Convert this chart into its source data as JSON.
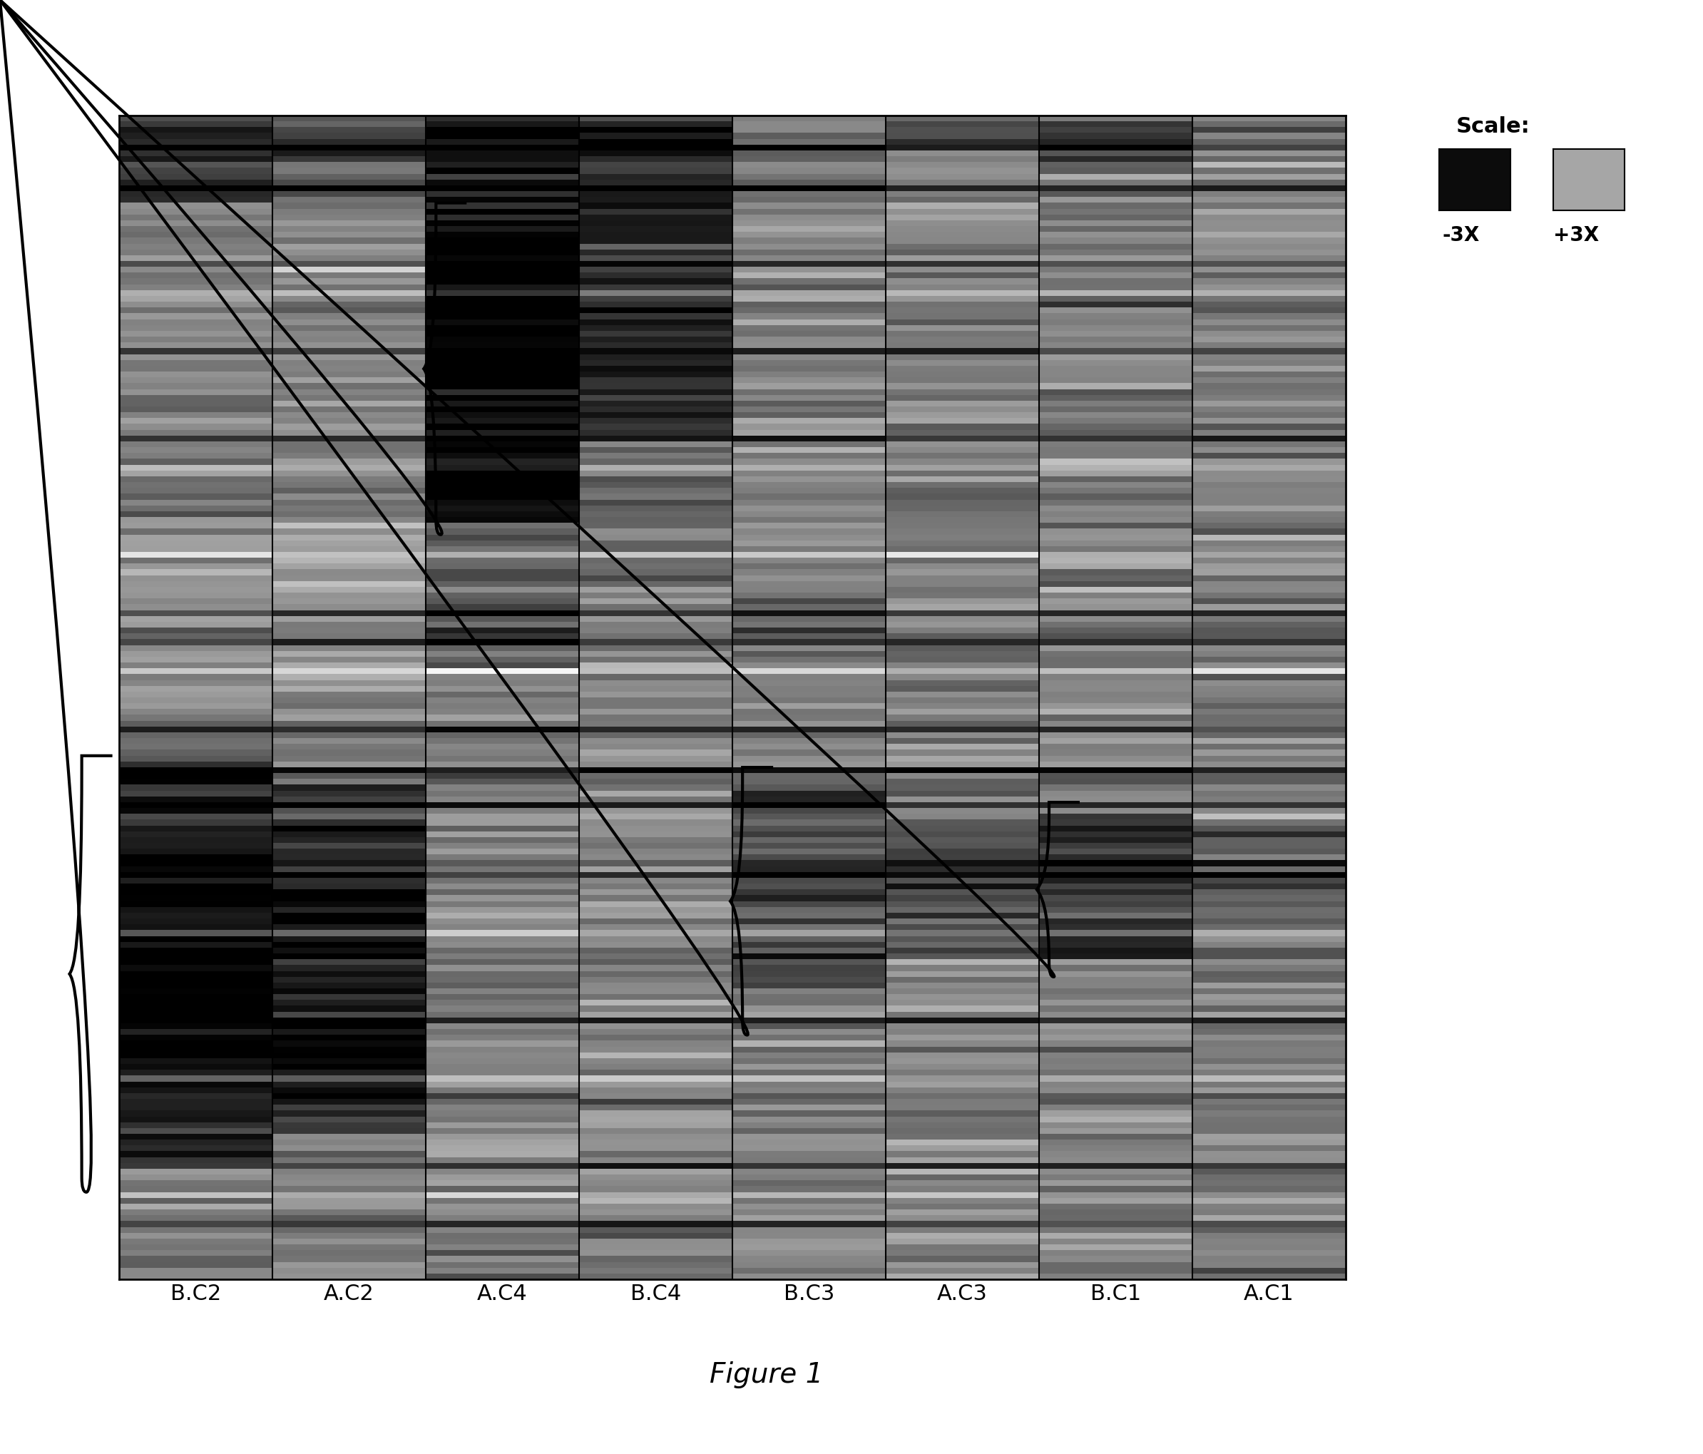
{
  "columns": [
    "B.C2",
    "A.C2",
    "A.C4",
    "B.C4",
    "B.C3",
    "A.C3",
    "B.C1",
    "A.C1"
  ],
  "n_rows": 200,
  "n_cols": 8,
  "figure_label": "Figure 1",
  "scale_label": "Scale:",
  "scale_neg": "-3X",
  "scale_pos": "+3X",
  "background_color": "#ffffff",
  "col_label_fontsize": 22,
  "figure_label_fontsize": 28,
  "seed": 42
}
